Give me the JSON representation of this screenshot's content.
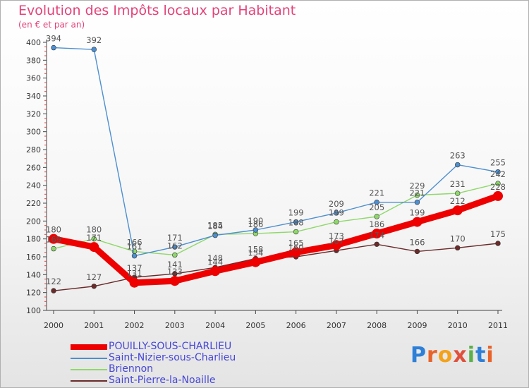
{
  "title": "Evolution des Impôts locaux par Habitant",
  "subtitle": "(en € et par an)",
  "logo": {
    "text": "Proxiti",
    "letters": [
      "P",
      "r",
      "o",
      "x",
      "i",
      "t",
      "i"
    ],
    "colors": [
      "#2d7fd8",
      "#e8632a",
      "#f4a21a",
      "#e0503a",
      "#5bb04a",
      "#2d7fd8",
      "#e8632a"
    ]
  },
  "chart_data": {
    "type": "line",
    "title": "Evolution des Impôts locaux par Habitant",
    "subtitle": "(en € et par an)",
    "xlabel": "",
    "ylabel": "",
    "ylim": [
      100,
      400
    ],
    "yticks": [
      100,
      120,
      140,
      160,
      180,
      200,
      220,
      240,
      260,
      280,
      300,
      320,
      340,
      360,
      380,
      400
    ],
    "x": [
      "2000",
      "2001",
      "2002",
      "2003",
      "2004",
      "2005",
      "2006",
      "2007",
      "2008",
      "2009",
      "2010",
      "2011"
    ],
    "grid": false,
    "legend_position": "bottom-left",
    "series": [
      {
        "name": "POUILLY-SOUS-CHARLIEU",
        "color": "#ee0000",
        "values": [
          180,
          171,
          131,
          133,
          144,
          154,
          165,
          173,
          186,
          199,
          212,
          228
        ]
      },
      {
        "name": "Saint-Nizier-sous-Charlieu",
        "color": "#4d8fd0",
        "values": [
          394,
          392,
          161,
          171,
          184,
          190,
          199,
          209,
          221,
          221,
          263,
          255
        ]
      },
      {
        "name": "Briennon",
        "color": "#8ed86a",
        "values": [
          169,
          180,
          166,
          162,
          185,
          186,
          188,
          199,
          205,
          229,
          231,
          242
        ]
      },
      {
        "name": "Saint-Pierre-la-Noaille",
        "color": "#6b2a2a",
        "values": [
          122,
          127,
          137,
          141,
          148,
          158,
          160,
          167,
          174,
          166,
          170,
          175
        ]
      }
    ],
    "data_labels": [
      [
        180,
        171,
        131,
        133,
        144,
        154,
        165,
        173,
        186,
        199,
        212,
        228
      ],
      [
        394,
        392,
        161,
        171,
        184,
        190,
        199,
        209,
        221,
        221,
        263,
        255
      ],
      [
        169,
        180,
        166,
        162,
        185,
        186,
        188,
        199,
        205,
        229,
        231,
        242
      ],
      [
        122,
        127,
        137,
        141,
        148,
        158,
        160,
        167,
        174,
        166,
        170,
        175
      ]
    ]
  }
}
